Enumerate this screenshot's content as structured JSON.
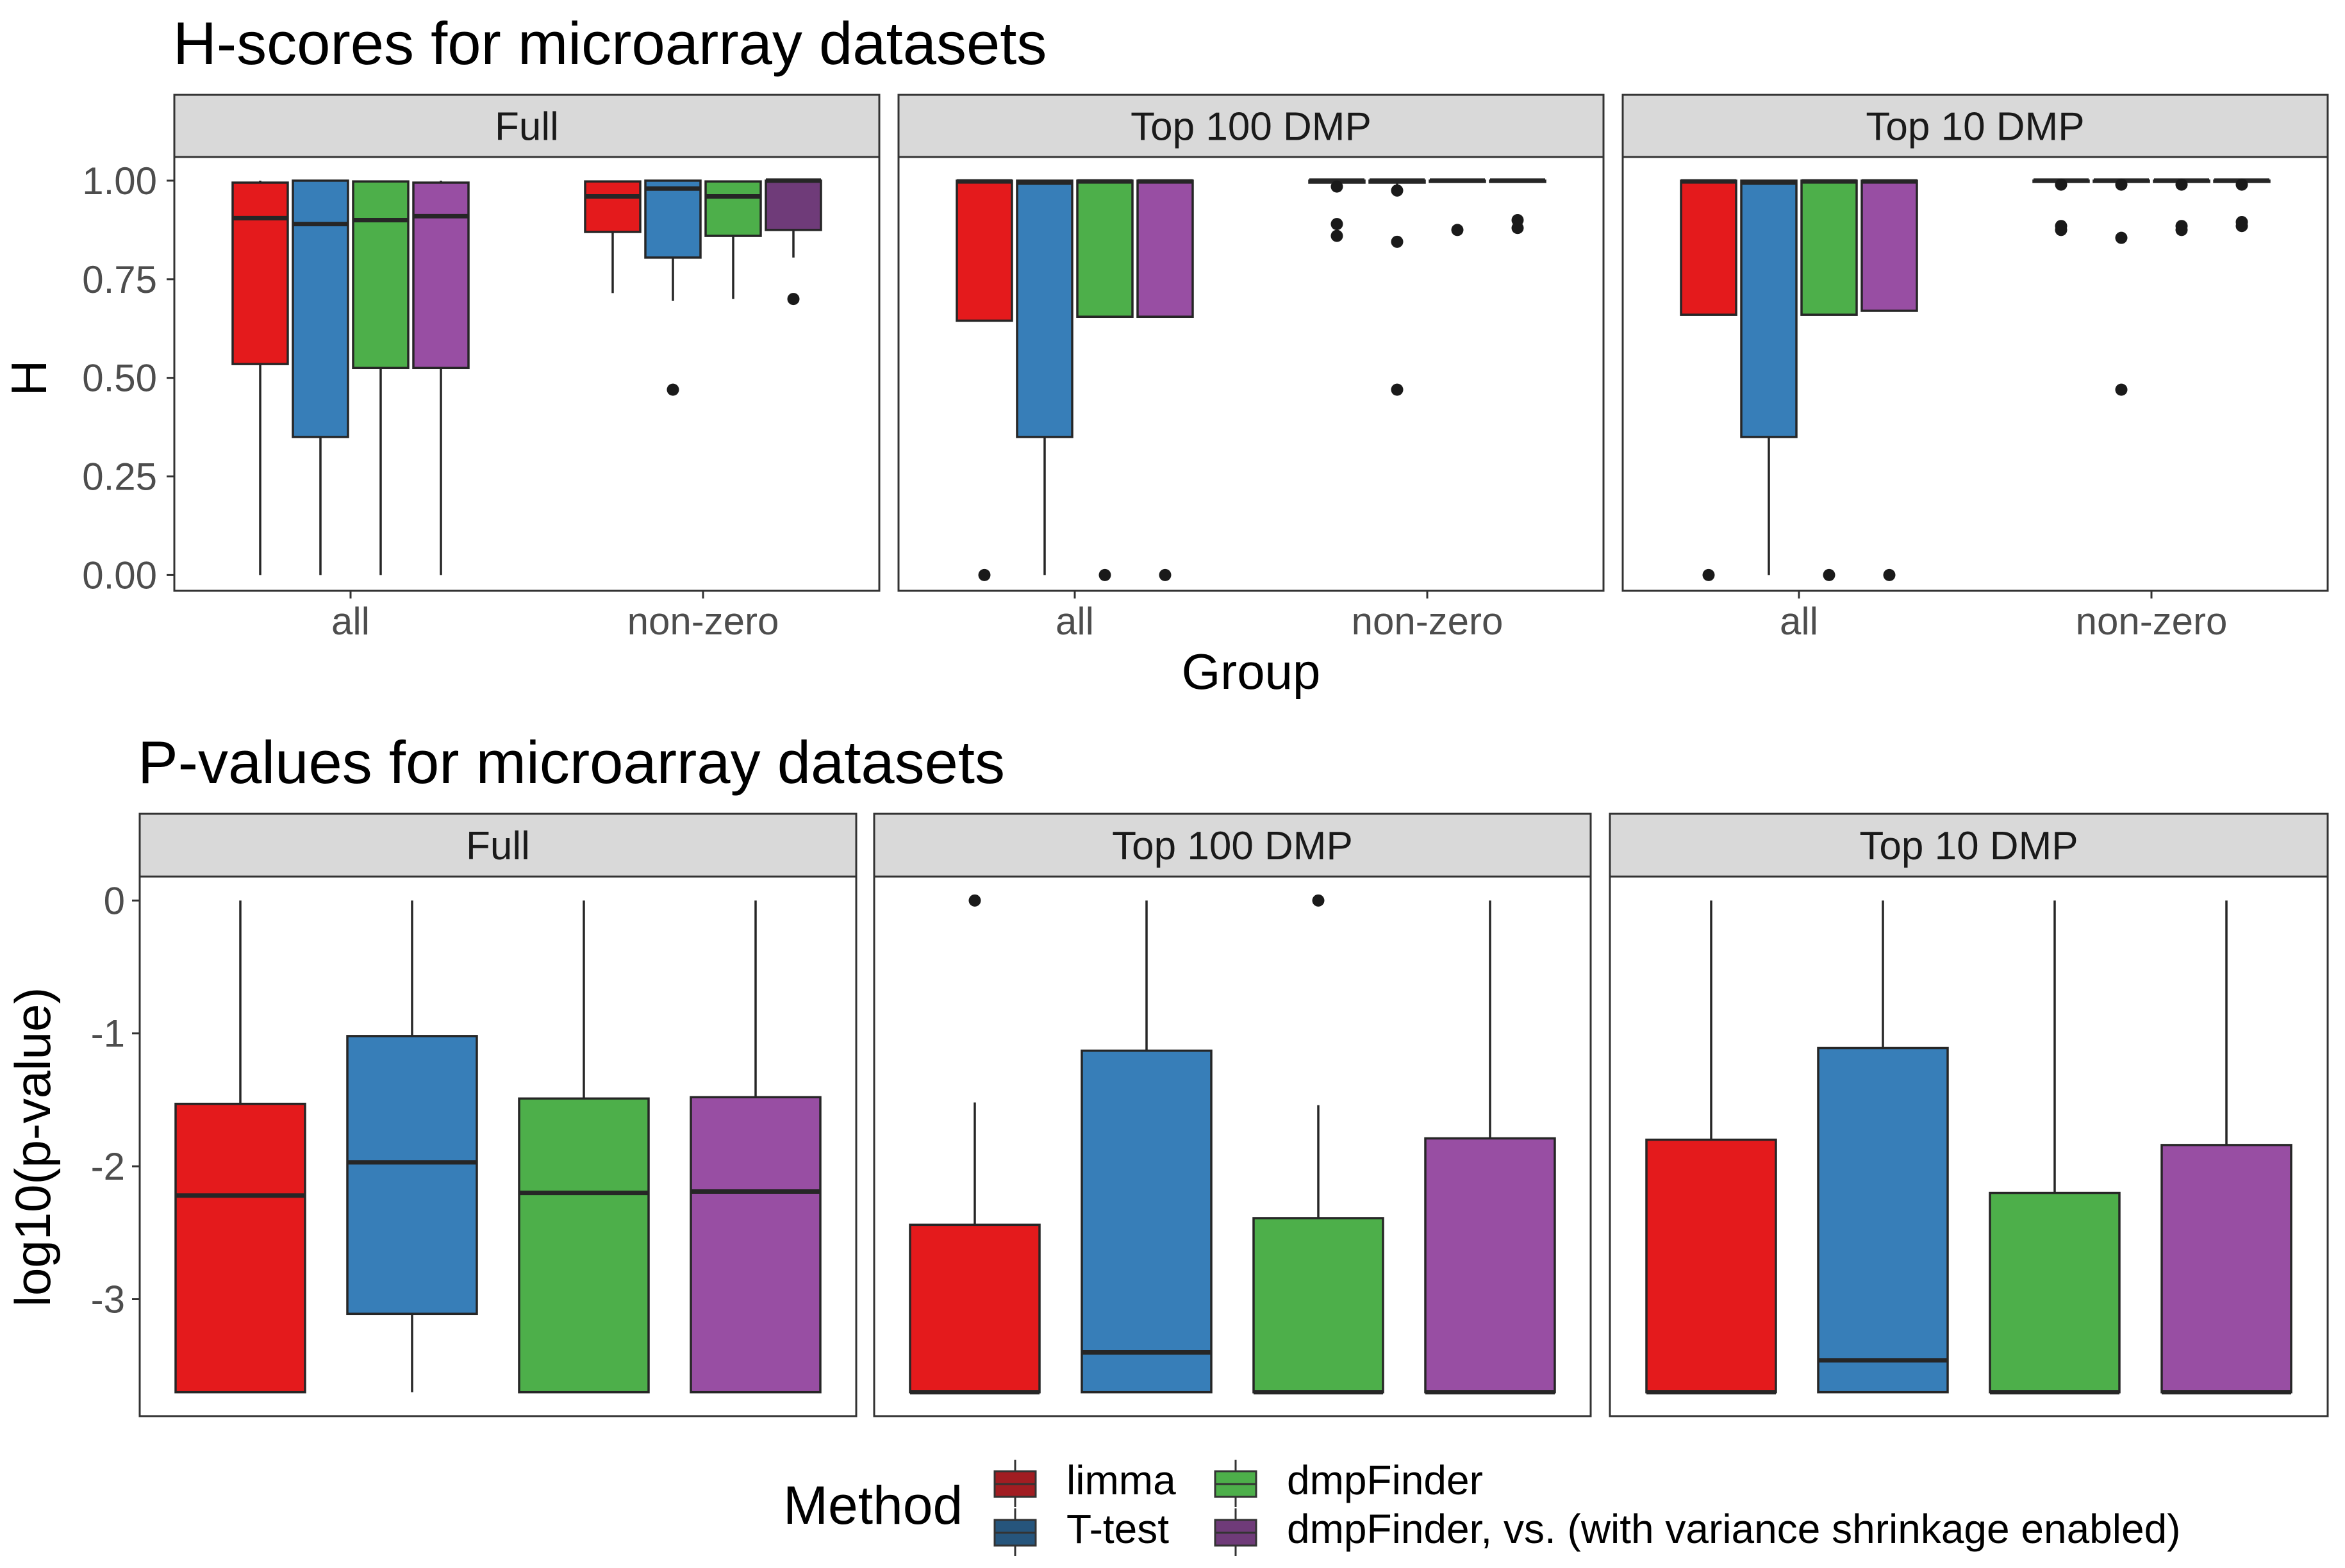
{
  "colors": {
    "limma": "#e41a1c",
    "T-test": "#377eb8",
    "dmpFinder": "#4daf4a",
    "dmpFinder, vs. (with variance shrinkage enabled)": "#984ea3",
    "box_outline": "#262626",
    "strip_fill": "#d9d9d9",
    "panel_border": "#333333"
  },
  "legend": {
    "title": "Method",
    "items": [
      {
        "key": "limma",
        "label": "limma",
        "legend_color": "#a11d22"
      },
      {
        "key": "T-test",
        "label": "T-test",
        "legend_color": "#26557c"
      },
      {
        "key": "dmpFinder",
        "label": "dmpFinder",
        "legend_color": "#4daf4a"
      },
      {
        "key": "dmpFinder, vs. (with variance shrinkage enabled)",
        "label": "dmpFinder, vs. (with variance shrinkage enabled)",
        "legend_color": "#6f3b79"
      }
    ]
  },
  "chart_data": [
    {
      "type": "box",
      "title": "H-scores for microarray datasets",
      "xlabel": "Group",
      "ylabel": "H",
      "ylim": [
        -0.04,
        1.06
      ],
      "yticks": [
        0,
        0.25,
        0.5,
        0.75,
        1.0
      ],
      "ytick_labels": [
        "0.00",
        "0.25",
        "0.50",
        "0.75",
        "1.00"
      ],
      "categories": [
        "all",
        "non-zero"
      ],
      "panels": [
        {
          "strip": "Full",
          "boxes": [
            {
              "group": "all",
              "method": "limma",
              "lower": 0.0,
              "q1": 0.535,
              "median": 0.905,
              "q3": 0.995,
              "upper": 1.0,
              "outliers": []
            },
            {
              "group": "all",
              "method": "T-test",
              "lower": 0.0,
              "q1": 0.35,
              "median": 0.89,
              "q3": 1.0,
              "upper": 1.0,
              "outliers": []
            },
            {
              "group": "all",
              "method": "dmpFinder",
              "lower": 0.0,
              "q1": 0.525,
              "median": 0.9,
              "q3": 0.998,
              "upper": 1.0,
              "outliers": []
            },
            {
              "group": "all",
              "method": "dmpFinder, vs. (with variance shrinkage enabled)",
              "lower": 0.0,
              "q1": 0.525,
              "median": 0.91,
              "q3": 0.995,
              "upper": 1.0,
              "outliers": []
            },
            {
              "group": "non-zero",
              "method": "limma",
              "lower": 0.715,
              "q1": 0.87,
              "median": 0.96,
              "q3": 0.998,
              "upper": 1.0,
              "outliers": []
            },
            {
              "group": "non-zero",
              "method": "T-test",
              "lower": 0.695,
              "q1": 0.805,
              "median": 0.98,
              "q3": 1.0,
              "upper": 1.0,
              "outliers": [
                0.47
              ]
            },
            {
              "group": "non-zero",
              "method": "dmpFinder",
              "lower": 0.7,
              "q1": 0.86,
              "median": 0.96,
              "q3": 0.998,
              "upper": 1.0,
              "outliers": []
            },
            {
              "group": "non-zero",
              "method": "dmpFinder, vs. (with variance shrinkage enabled)",
              "lower": 0.805,
              "q1": 0.875,
              "median": 1.0,
              "q3": 1.0,
              "upper": 1.0,
              "outliers": [
                0.7
              ],
              "fill_override": "#6f3b79"
            }
          ]
        },
        {
          "strip": "Top 100 DMP",
          "boxes": [
            {
              "group": "all",
              "method": "limma",
              "lower": 0.645,
              "q1": 0.645,
              "median": 0.998,
              "q3": 1.0,
              "upper": 1.0,
              "outliers": [
                0.0
              ]
            },
            {
              "group": "all",
              "method": "T-test",
              "lower": 0.0,
              "q1": 0.35,
              "median": 0.995,
              "q3": 1.0,
              "upper": 1.0,
              "outliers": []
            },
            {
              "group": "all",
              "method": "dmpFinder",
              "lower": 0.655,
              "q1": 0.655,
              "median": 0.998,
              "q3": 1.0,
              "upper": 1.0,
              "outliers": [
                0.0
              ]
            },
            {
              "group": "all",
              "method": "dmpFinder, vs. (with variance shrinkage enabled)",
              "lower": 0.655,
              "q1": 0.655,
              "median": 0.998,
              "q3": 1.0,
              "upper": 1.0,
              "outliers": [
                0.0
              ]
            },
            {
              "group": "non-zero",
              "method": "limma",
              "lower": 0.99,
              "q1": 0.995,
              "median": 1.0,
              "q3": 1.0,
              "upper": 1.0,
              "outliers": [
                0.985,
                0.89,
                0.86
              ]
            },
            {
              "group": "non-zero",
              "method": "T-test",
              "lower": 0.99,
              "q1": 0.995,
              "median": 1.0,
              "q3": 1.0,
              "upper": 1.0,
              "outliers": [
                0.975,
                0.845,
                0.47
              ]
            },
            {
              "group": "non-zero",
              "method": "dmpFinder",
              "lower": 0.995,
              "q1": 0.998,
              "median": 1.0,
              "q3": 1.0,
              "upper": 1.0,
              "outliers": [
                0.875
              ]
            },
            {
              "group": "non-zero",
              "method": "dmpFinder, vs. (with variance shrinkage enabled)",
              "lower": 0.995,
              "q1": 0.998,
              "median": 1.0,
              "q3": 1.0,
              "upper": 1.0,
              "outliers": [
                0.9,
                0.88
              ]
            }
          ]
        },
        {
          "strip": "Top 10 DMP",
          "boxes": [
            {
              "group": "all",
              "method": "limma",
              "lower": 0.66,
              "q1": 0.66,
              "median": 0.998,
              "q3": 1.0,
              "upper": 1.0,
              "outliers": [
                0.0
              ]
            },
            {
              "group": "all",
              "method": "T-test",
              "lower": 0.0,
              "q1": 0.35,
              "median": 0.995,
              "q3": 1.0,
              "upper": 1.0,
              "outliers": []
            },
            {
              "group": "all",
              "method": "dmpFinder",
              "lower": 0.66,
              "q1": 0.66,
              "median": 0.998,
              "q3": 1.0,
              "upper": 1.0,
              "outliers": [
                0.0
              ]
            },
            {
              "group": "all",
              "method": "dmpFinder, vs. (with variance shrinkage enabled)",
              "lower": 0.67,
              "q1": 0.67,
              "median": 0.998,
              "q3": 1.0,
              "upper": 1.0,
              "outliers": [
                0.0
              ]
            },
            {
              "group": "non-zero",
              "method": "limma",
              "lower": 0.995,
              "q1": 0.998,
              "median": 1.0,
              "q3": 1.0,
              "upper": 1.0,
              "outliers": [
                0.99,
                0.885,
                0.875
              ]
            },
            {
              "group": "non-zero",
              "method": "T-test",
              "lower": 0.995,
              "q1": 0.998,
              "median": 1.0,
              "q3": 1.0,
              "upper": 1.0,
              "outliers": [
                0.99,
                0.855,
                0.47
              ]
            },
            {
              "group": "non-zero",
              "method": "dmpFinder",
              "lower": 0.995,
              "q1": 0.998,
              "median": 1.0,
              "q3": 1.0,
              "upper": 1.0,
              "outliers": [
                0.99,
                0.885,
                0.875
              ]
            },
            {
              "group": "non-zero",
              "method": "dmpFinder, vs. (with variance shrinkage enabled)",
              "lower": 0.995,
              "q1": 0.998,
              "median": 1.0,
              "q3": 1.0,
              "upper": 1.0,
              "outliers": [
                0.99,
                0.895,
                0.885
              ]
            }
          ]
        }
      ]
    },
    {
      "type": "box",
      "title": "P-values for microarray datasets",
      "xlabel": "",
      "ylabel": "log10(p-value)",
      "ylim": [
        -3.88,
        0.18
      ],
      "yticks": [
        0,
        -1,
        -2,
        -3
      ],
      "ytick_labels": [
        "0",
        "-1",
        "-2",
        "-3"
      ],
      "categories": [],
      "panels": [
        {
          "strip": "Full",
          "boxes": [
            {
              "method": "limma",
              "lower": -3.7,
              "q1": -3.7,
              "median": -2.22,
              "q3": -1.53,
              "upper": 0.0,
              "outliers": []
            },
            {
              "method": "T-test",
              "lower": -3.7,
              "q1": -3.11,
              "median": -1.97,
              "q3": -1.02,
              "upper": 0.0,
              "outliers": []
            },
            {
              "method": "dmpFinder",
              "lower": -3.7,
              "q1": -3.7,
              "median": -2.2,
              "q3": -1.49,
              "upper": 0.0,
              "outliers": []
            },
            {
              "method": "dmpFinder, vs. (with variance shrinkage enabled)",
              "lower": -3.7,
              "q1": -3.7,
              "median": -2.19,
              "q3": -1.48,
              "upper": 0.0,
              "outliers": []
            }
          ]
        },
        {
          "strip": "Top 100 DMP",
          "boxes": [
            {
              "method": "limma",
              "lower": -3.7,
              "q1": -3.7,
              "median": -3.7,
              "q3": -2.44,
              "upper": -1.52,
              "outliers": [
                0.0
              ]
            },
            {
              "method": "T-test",
              "lower": -3.7,
              "q1": -3.7,
              "median": -3.4,
              "q3": -1.13,
              "upper": 0.0,
              "outliers": []
            },
            {
              "method": "dmpFinder",
              "lower": -3.7,
              "q1": -3.7,
              "median": -3.7,
              "q3": -2.39,
              "upper": -1.54,
              "outliers": [
                0.0
              ]
            },
            {
              "method": "dmpFinder, vs. (with variance shrinkage enabled)",
              "lower": -3.7,
              "q1": -3.7,
              "median": -3.7,
              "q3": -1.79,
              "upper": 0.0,
              "outliers": []
            }
          ]
        },
        {
          "strip": "Top 10 DMP",
          "boxes": [
            {
              "method": "limma",
              "lower": -3.7,
              "q1": -3.7,
              "median": -3.7,
              "q3": -1.8,
              "upper": 0.0,
              "outliers": []
            },
            {
              "method": "T-test",
              "lower": -3.7,
              "q1": -3.7,
              "median": -3.46,
              "q3": -1.11,
              "upper": 0.0,
              "outliers": []
            },
            {
              "method": "dmpFinder",
              "lower": -3.7,
              "q1": -3.7,
              "median": -3.7,
              "q3": -2.2,
              "upper": 0.0,
              "outliers": []
            },
            {
              "method": "dmpFinder, vs. (with variance shrinkage enabled)",
              "lower": -3.7,
              "q1": -3.7,
              "median": -3.7,
              "q3": -1.84,
              "upper": 0.0,
              "outliers": []
            }
          ]
        }
      ]
    }
  ]
}
